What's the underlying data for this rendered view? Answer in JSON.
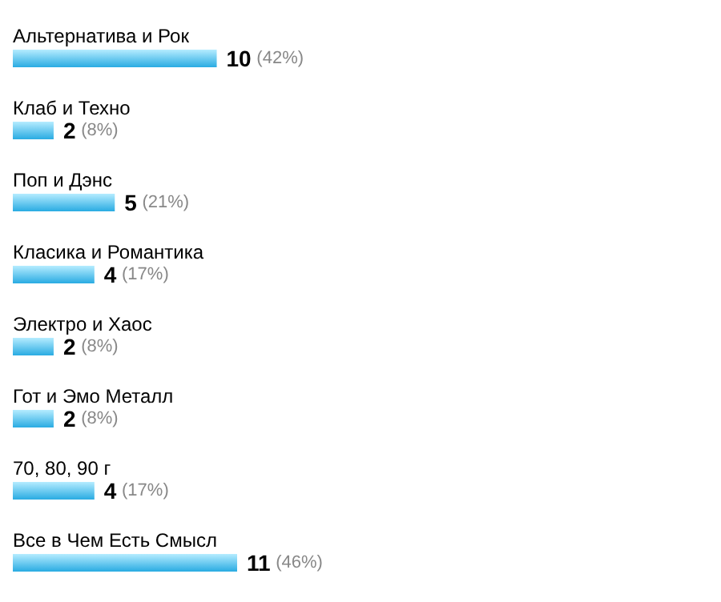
{
  "chart_data": {
    "type": "bar",
    "orientation": "horizontal",
    "categories": [
      "Альтернатива и Рок",
      "Клаб и Техно",
      "Поп и Дэнс",
      "Класика и Романтика",
      "Электро и Хаос",
      "Гот и Эмо Металл",
      "70, 80, 90 г",
      "Все в Чем Есть Смысл"
    ],
    "values": [
      10,
      2,
      5,
      4,
      2,
      2,
      4,
      11
    ],
    "value_labels": [
      "10 (42%)",
      "2 (8%)",
      "5 (21%)",
      "4 (17%)",
      "2 (8%)",
      "2 (8%)",
      "4 (17%)",
      "11 (46%)"
    ],
    "color": "#29abe2"
  }
}
